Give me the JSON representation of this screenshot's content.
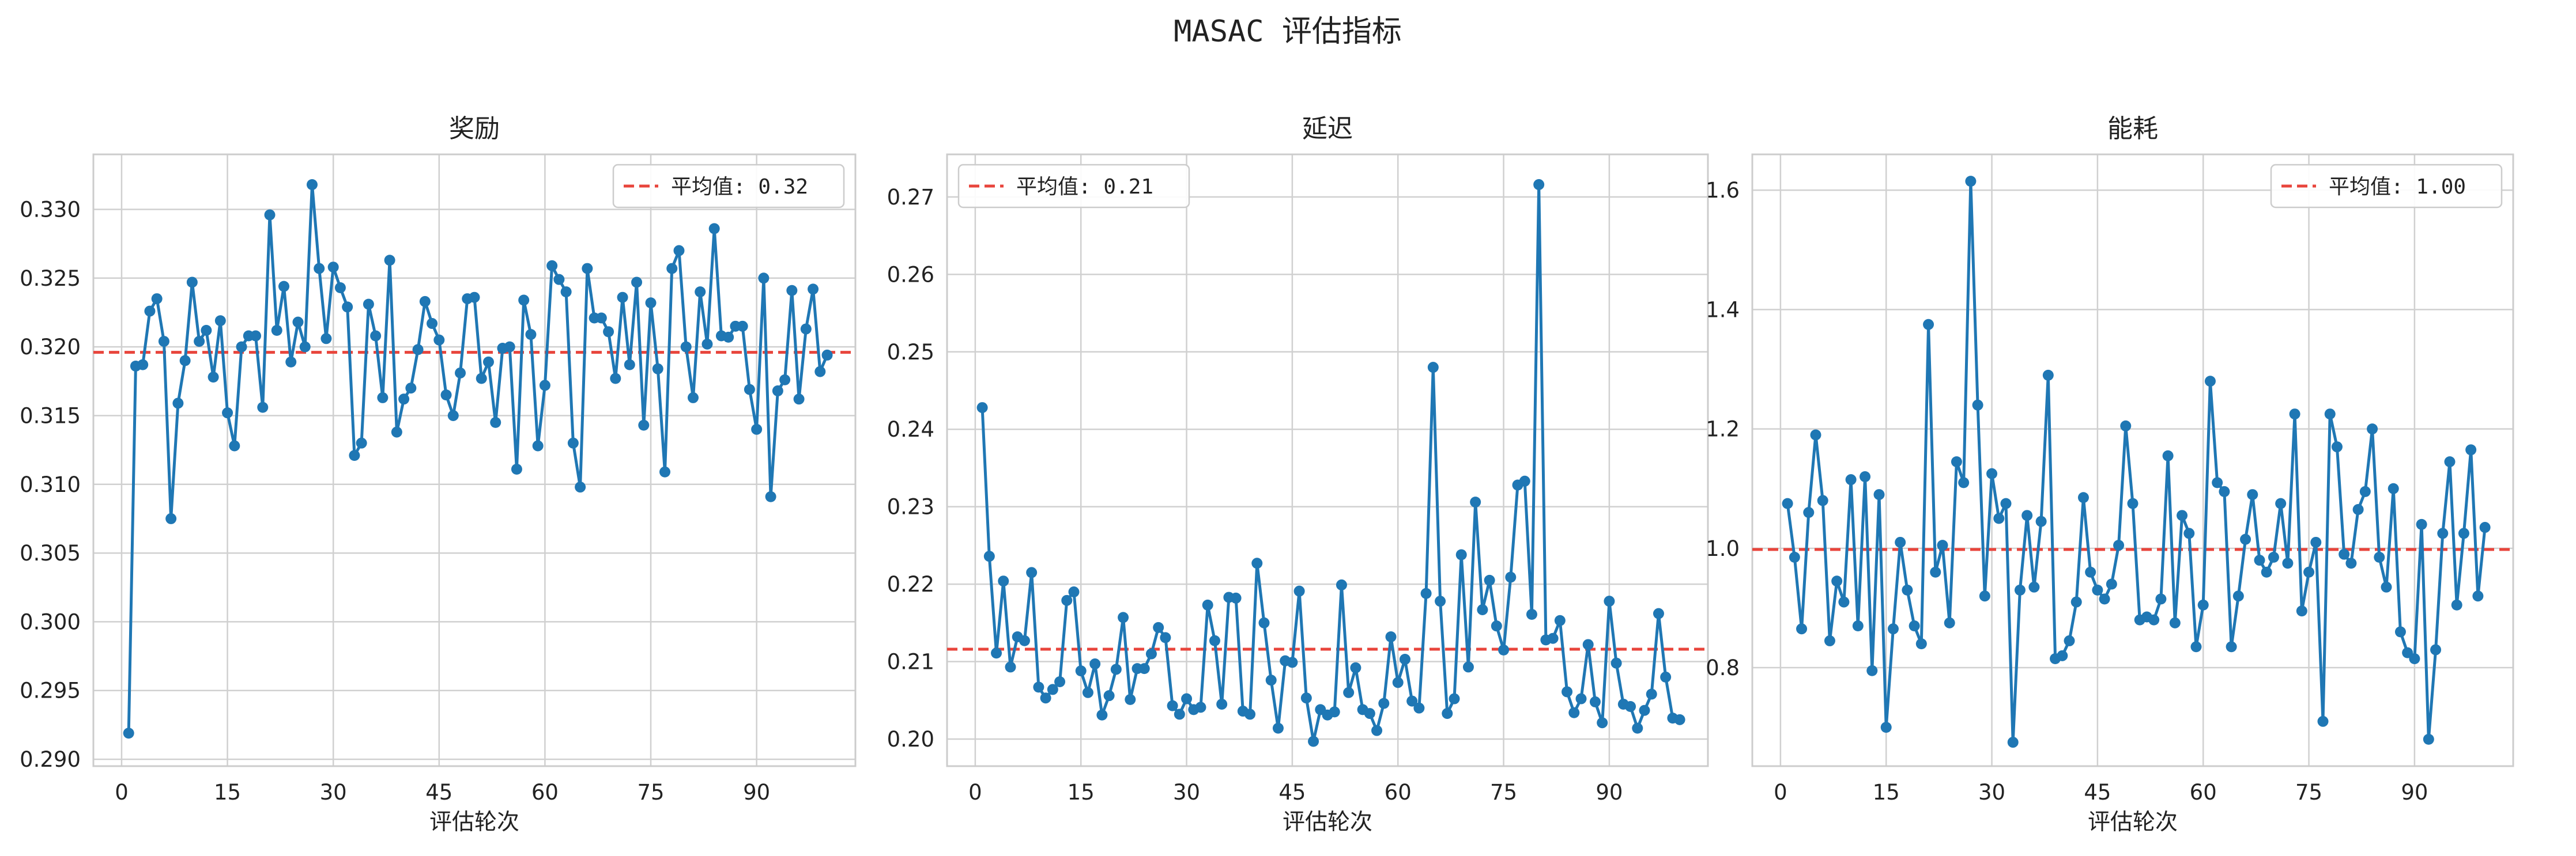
{
  "figure": {
    "suptitle": "MASAC 评估指标"
  },
  "colors": {
    "line": "#1f77b4",
    "mean_line": "#e8453c",
    "grid": "#d0d0d0",
    "spine": "#cccccc",
    "text": "#222222",
    "legend_border": "#cccccc"
  },
  "chart_data": [
    {
      "type": "line",
      "title": "奖励",
      "xlabel": "评估轮次",
      "ylabel": "",
      "xlim": [
        -4,
        104
      ],
      "ylim": [
        0.2895,
        0.334
      ],
      "xticks": [
        0,
        15,
        30,
        45,
        60,
        75,
        90
      ],
      "yticks": [
        0.29,
        0.295,
        0.3,
        0.305,
        0.31,
        0.315,
        0.32,
        0.325,
        0.33
      ],
      "ytick_labels": [
        "0.290",
        "0.295",
        "0.300",
        "0.305",
        "0.310",
        "0.315",
        "0.320",
        "0.325",
        "0.330"
      ],
      "grid": true,
      "legend_loc": "top-right",
      "mean_value": 0.3196,
      "mean_label": "平均值: 0.32",
      "x_start": 1,
      "values": [
        0.2919,
        0.3186,
        0.3187,
        0.3226,
        0.3235,
        0.3204,
        0.3075,
        0.3159,
        0.319,
        0.3247,
        0.3204,
        0.3212,
        0.3178,
        0.3219,
        0.3152,
        0.3128,
        0.32,
        0.3208,
        0.3208,
        0.3156,
        0.3296,
        0.3212,
        0.3244,
        0.3189,
        0.3218,
        0.32,
        0.3318,
        0.3257,
        0.3206,
        0.3258,
        0.3243,
        0.3229,
        0.3121,
        0.313,
        0.3231,
        0.3208,
        0.3163,
        0.3263,
        0.3138,
        0.3162,
        0.317,
        0.3198,
        0.3233,
        0.3217,
        0.3205,
        0.3165,
        0.315,
        0.3181,
        0.3235,
        0.3236,
        0.3177,
        0.3189,
        0.3145,
        0.3199,
        0.32,
        0.3111,
        0.3234,
        0.3209,
        0.3128,
        0.3172,
        0.3259,
        0.3249,
        0.324,
        0.313,
        0.3098,
        0.3257,
        0.3221,
        0.3221,
        0.3211,
        0.3177,
        0.3236,
        0.3187,
        0.3247,
        0.3143,
        0.3232,
        0.3184,
        0.3109,
        0.3257,
        0.327,
        0.32,
        0.3163,
        0.324,
        0.3202,
        0.3286,
        0.3208,
        0.3207,
        0.3215,
        0.3215,
        0.3169,
        0.314,
        0.325,
        0.3091,
        0.3168,
        0.3176,
        0.3241,
        0.3162,
        0.3213,
        0.3242,
        0.3182,
        0.3194
      ]
    },
    {
      "type": "line",
      "title": "延迟",
      "xlabel": "评估轮次",
      "ylabel": "",
      "xlim": [
        -4,
        104
      ],
      "ylim": [
        0.1965,
        0.2755
      ],
      "xticks": [
        0,
        15,
        30,
        45,
        60,
        75,
        90
      ],
      "yticks": [
        0.2,
        0.21,
        0.22,
        0.23,
        0.24,
        0.25,
        0.26,
        0.27
      ],
      "ytick_labels": [
        "0.20",
        "0.21",
        "0.22",
        "0.23",
        "0.24",
        "0.25",
        "0.26",
        "0.27"
      ],
      "grid": true,
      "legend_loc": "top-left",
      "mean_value": 0.2116,
      "mean_label": "平均值: 0.21",
      "x_start": 1,
      "values": [
        0.2428,
        0.2236,
        0.2111,
        0.2204,
        0.2093,
        0.2132,
        0.2127,
        0.2215,
        0.2067,
        0.2053,
        0.2064,
        0.2074,
        0.2179,
        0.219,
        0.2088,
        0.206,
        0.2097,
        0.2031,
        0.2056,
        0.209,
        0.2157,
        0.2051,
        0.2091,
        0.2091,
        0.211,
        0.2144,
        0.2131,
        0.2043,
        0.2032,
        0.2052,
        0.2038,
        0.2041,
        0.2173,
        0.2127,
        0.2045,
        0.2183,
        0.2182,
        0.2036,
        0.2032,
        0.2227,
        0.215,
        0.2076,
        0.2014,
        0.2101,
        0.2099,
        0.2191,
        0.2053,
        0.1997,
        0.2038,
        0.2031,
        0.2035,
        0.2199,
        0.206,
        0.2092,
        0.2038,
        0.2033,
        0.2011,
        0.2046,
        0.2132,
        0.2073,
        0.2103,
        0.2049,
        0.204,
        0.2188,
        0.248,
        0.2178,
        0.2033,
        0.2052,
        0.2238,
        0.2093,
        0.2306,
        0.2167,
        0.2205,
        0.2146,
        0.2115,
        0.2209,
        0.2328,
        0.2333,
        0.2161,
        0.2716,
        0.2128,
        0.213,
        0.2153,
        0.2061,
        0.2034,
        0.2052,
        0.2122,
        0.2048,
        0.2021,
        0.2178,
        0.2098,
        0.2045,
        0.2042,
        0.2014,
        0.2037,
        0.2058,
        0.2162,
        0.208,
        0.2027,
        0.2025
      ]
    },
    {
      "type": "line",
      "title": "能耗",
      "xlabel": "评估轮次",
      "ylabel": "",
      "xlim": [
        -4,
        104
      ],
      "ylim": [
        0.635,
        1.66
      ],
      "xticks": [
        0,
        15,
        30,
        45,
        60,
        75,
        90
      ],
      "yticks": [
        0.8,
        1.0,
        1.2,
        1.4,
        1.6
      ],
      "ytick_labels": [
        "0.8",
        "1.0",
        "1.2",
        "1.4",
        "1.6"
      ],
      "grid": true,
      "legend_loc": "top-right",
      "mean_value": 0.998,
      "mean_label": "平均值: 1.00",
      "x_start": 1,
      "values": [
        1.075,
        0.985,
        0.865,
        1.06,
        1.19,
        1.08,
        0.845,
        0.945,
        0.91,
        1.115,
        0.87,
        1.12,
        0.795,
        1.09,
        0.7,
        0.865,
        1.01,
        0.93,
        0.87,
        0.84,
        1.375,
        0.96,
        1.005,
        0.875,
        1.145,
        1.11,
        1.615,
        1.24,
        0.92,
        1.125,
        1.05,
        1.075,
        0.675,
        0.93,
        1.055,
        0.935,
        1.045,
        1.29,
        0.815,
        0.82,
        0.845,
        0.91,
        1.085,
        0.96,
        0.93,
        0.915,
        0.94,
        1.005,
        1.205,
        1.075,
        0.88,
        0.885,
        0.88,
        0.915,
        1.155,
        0.875,
        1.055,
        1.025,
        0.835,
        0.905,
        1.28,
        1.11,
        1.095,
        0.835,
        0.92,
        1.015,
        1.09,
        0.98,
        0.96,
        0.985,
        1.075,
        0.975,
        1.225,
        0.895,
        0.96,
        1.01,
        0.71,
        1.225,
        1.17,
        0.99,
        0.975,
        1.065,
        1.095,
        1.2,
        0.985,
        0.935,
        1.1,
        0.86,
        0.825,
        0.815,
        1.04,
        0.68,
        0.83,
        1.025,
        1.145,
        0.905,
        1.025,
        1.165,
        0.92,
        1.035
      ]
    }
  ]
}
